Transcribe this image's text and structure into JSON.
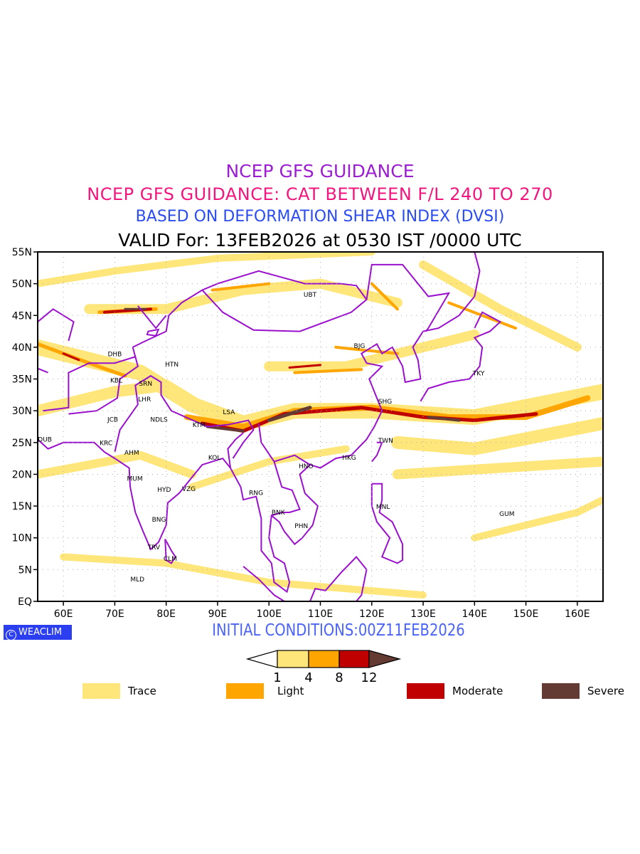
{
  "titles": {
    "line1": "NCEP GFS GUIDANCE",
    "line2": "NCEP GFS GUIDANCE: CAT BETWEEN F/L 240 TO 270",
    "line3": "BASED ON DEFORMATION SHEAR INDEX (DVSI)",
    "line4": "VALID For: 13FEB2026 at 0530 IST /0000 UTC"
  },
  "footer": {
    "logo": "WEACLIM",
    "initial_conditions": "INITIAL CONDITIONS:00Z11FEB2026"
  },
  "colors": {
    "trace": "#ffe67a",
    "light": "#ffa500",
    "moderate": "#c00000",
    "severe": "#643b32",
    "boundary": "#9a10cc"
  },
  "map": {
    "lon_range": [
      55,
      165
    ],
    "lat_range": [
      0,
      55
    ],
    "x_ticks": [
      "60E",
      "70E",
      "80E",
      "90E",
      "100E",
      "110E",
      "120E",
      "130E",
      "140E",
      "150E",
      "160E"
    ],
    "x_tick_values": [
      60,
      70,
      80,
      90,
      100,
      110,
      120,
      130,
      140,
      150,
      160
    ],
    "y_ticks": [
      "EQ",
      "5N",
      "10N",
      "15N",
      "20N",
      "25N",
      "30N",
      "35N",
      "40N",
      "45N",
      "50N",
      "55N"
    ],
    "y_tick_values": [
      0,
      5,
      10,
      15,
      20,
      25,
      30,
      35,
      40,
      45,
      50,
      55
    ],
    "cities": [
      {
        "code": "UBT",
        "lon": 108,
        "lat": 48.3
      },
      {
        "code": "BJG",
        "lon": 117.6,
        "lat": 40.2
      },
      {
        "code": "TKY",
        "lon": 140.8,
        "lat": 35.9
      },
      {
        "code": "SHG",
        "lon": 122.6,
        "lat": 31.5
      },
      {
        "code": "TWN",
        "lon": 122.7,
        "lat": 25.3
      },
      {
        "code": "HKG",
        "lon": 115.6,
        "lat": 22.6
      },
      {
        "code": "HNO",
        "lon": 107.2,
        "lat": 21.3
      },
      {
        "code": "RNG",
        "lon": 97.5,
        "lat": 17.1
      },
      {
        "code": "BNK",
        "lon": 101.8,
        "lat": 14.0
      },
      {
        "code": "PHN",
        "lon": 106.3,
        "lat": 11.9
      },
      {
        "code": "MNL",
        "lon": 122.2,
        "lat": 14.9
      },
      {
        "code": "GUM",
        "lon": 146.3,
        "lat": 13.8
      },
      {
        "code": "DHB",
        "lon": 70,
        "lat": 38.9
      },
      {
        "code": "HTN",
        "lon": 81.1,
        "lat": 37.3
      },
      {
        "code": "KBL",
        "lon": 70.3,
        "lat": 34.8
      },
      {
        "code": "SRN",
        "lon": 76,
        "lat": 34.3
      },
      {
        "code": "LHR",
        "lon": 75.8,
        "lat": 31.8
      },
      {
        "code": "JCB",
        "lon": 69.6,
        "lat": 28.6
      },
      {
        "code": "NDLS",
        "lon": 78.6,
        "lat": 28.6
      },
      {
        "code": "KTM",
        "lon": 86.4,
        "lat": 27.8
      },
      {
        "code": "LSA",
        "lon": 92.2,
        "lat": 29.8
      },
      {
        "code": "DUB",
        "lon": 56.4,
        "lat": 25.5
      },
      {
        "code": "KRC",
        "lon": 68.3,
        "lat": 24.9
      },
      {
        "code": "AHM",
        "lon": 73.3,
        "lat": 23.4
      },
      {
        "code": "MUM",
        "lon": 73.9,
        "lat": 19.3
      },
      {
        "code": "HYD",
        "lon": 79.6,
        "lat": 17.6
      },
      {
        "code": "VZG",
        "lon": 84.4,
        "lat": 17.7
      },
      {
        "code": "KOL",
        "lon": 89.4,
        "lat": 22.6
      },
      {
        "code": "BNG",
        "lon": 78.6,
        "lat": 12.9
      },
      {
        "code": "TRV",
        "lon": 77.6,
        "lat": 8.5
      },
      {
        "code": "CLM",
        "lon": 80.8,
        "lat": 6.7
      },
      {
        "code": "MLD",
        "lon": 74.4,
        "lat": 3.5
      }
    ]
  },
  "colorbar": {
    "ticks": [
      "1",
      "4",
      "8",
      "12"
    ]
  },
  "legend": [
    {
      "label": "Trace",
      "color": "#ffe67a"
    },
    {
      "label": "Light",
      "color": "#ffa500"
    },
    {
      "label": "Moderate",
      "color": "#c00000"
    },
    {
      "label": "Severe",
      "color": "#643b32"
    }
  ]
}
